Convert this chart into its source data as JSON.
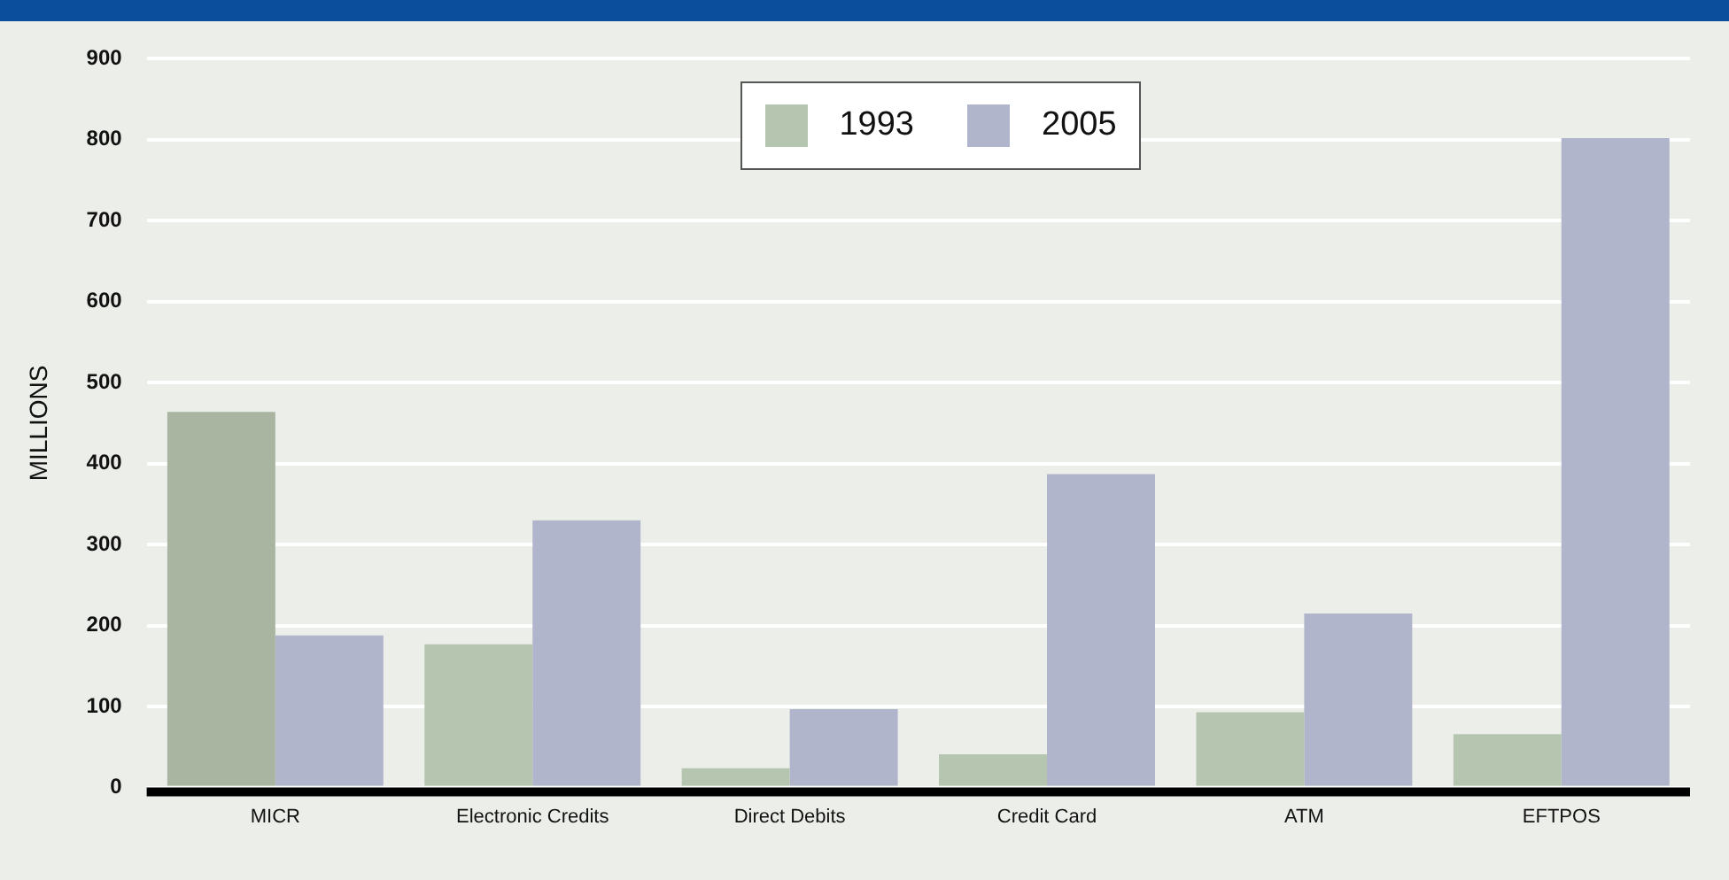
{
  "chart_data": {
    "type": "bar",
    "ylabel": "MILLIONS",
    "categories": [
      "MICR",
      "Electronic Credits",
      "Direct Debits",
      "Credit Card",
      "ATM",
      "EFTPOS"
    ],
    "series": [
      {
        "name": "1993",
        "color": "#b6c5b0",
        "colors": [
          "#a9b5a1",
          "#b6c5b0",
          "#b6c5b0",
          "#b6c5b0",
          "#b6c5b0",
          "#b6c5b0"
        ],
        "values": [
          464,
          177,
          24,
          41,
          93,
          66
        ]
      },
      {
        "name": "2005",
        "color": "#b1b5cc",
        "values": [
          188,
          330,
          97,
          387,
          215,
          802
        ]
      }
    ],
    "ylim": [
      0,
      900
    ],
    "yticks": [
      0,
      100,
      200,
      300,
      400,
      500,
      600,
      700,
      800,
      900
    ],
    "grid": "y",
    "legend": "top"
  }
}
